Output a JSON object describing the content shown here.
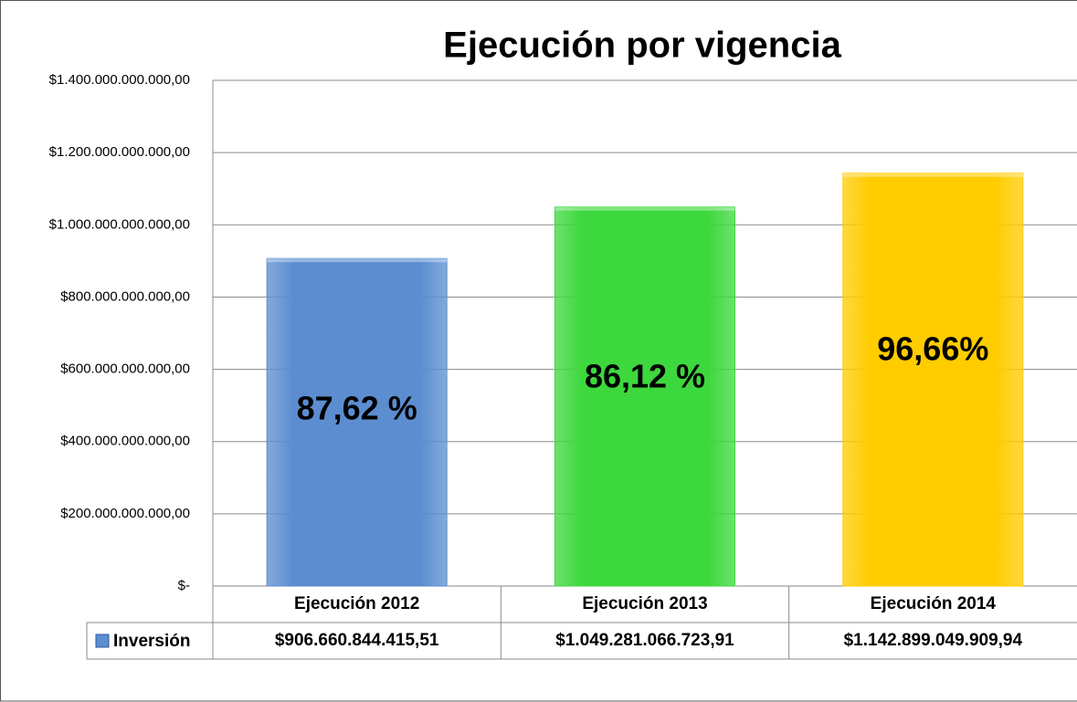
{
  "chart_data": {
    "type": "bar",
    "title": "Ejecución por vigencia",
    "categories": [
      "Ejecución 2012",
      "Ejecución 2013",
      "Ejecución 2014"
    ],
    "series": [
      {
        "name": "Inversión",
        "colors": [
          "#5b8dd0",
          "#3dd83d",
          "#ffcc00"
        ],
        "values": [
          906660844415.51,
          1049281066723.91,
          1142899049909.94
        ],
        "value_labels": [
          "$906.660.844.415,51",
          "$1.049.281.066.723,91",
          "$1.142.899.049.909,94"
        ]
      }
    ],
    "annotations": [
      "87,62 %",
      "86,12 %",
      "96,66%"
    ],
    "ylim": [
      0,
      1400000000000
    ],
    "yticks": [
      {
        "value": 0,
        "label": "$-"
      },
      {
        "value": 200000000000,
        "label": "$200.000.000.000,00"
      },
      {
        "value": 400000000000,
        "label": "$400.000.000.000,00"
      },
      {
        "value": 600000000000,
        "label": "$600.000.000.000,00"
      },
      {
        "value": 800000000000,
        "label": "$800.000.000.000,00"
      },
      {
        "value": 1000000000000,
        "label": "$1.000.000.000.000,00"
      },
      {
        "value": 1200000000000,
        "label": "$1.200.000.000.000,00"
      },
      {
        "value": 1400000000000,
        "label": "$1.400.000.000.000,00"
      }
    ],
    "grid": true
  }
}
